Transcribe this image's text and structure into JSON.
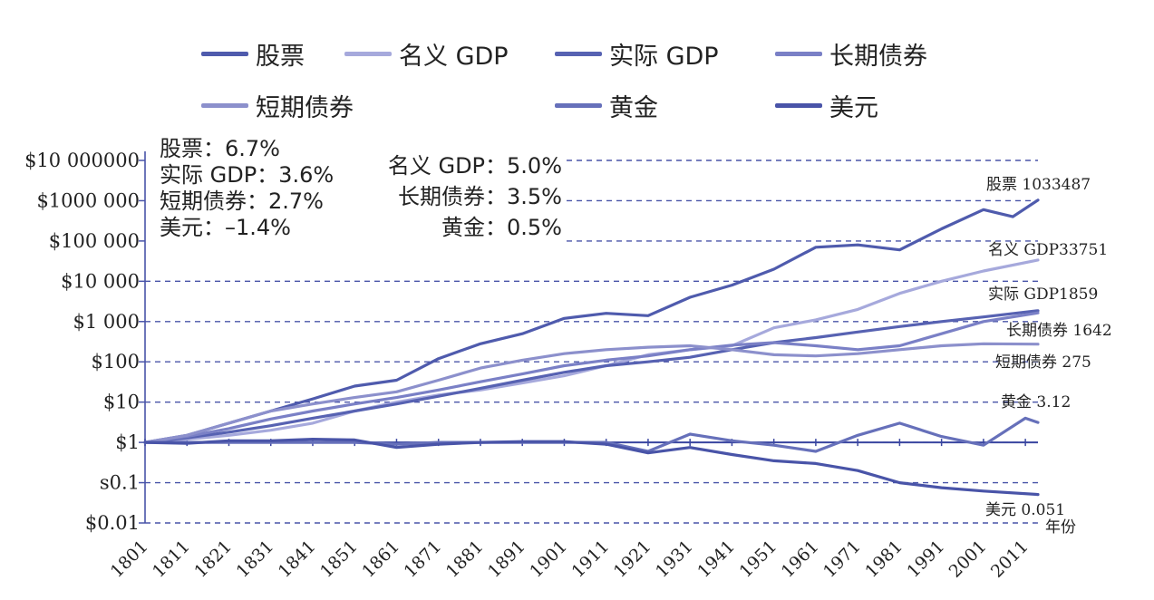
{
  "chart_data": {
    "type": "line",
    "y_scale": "log",
    "ylim": [
      0.01,
      10000000
    ],
    "xlim": [
      1801,
      2014
    ],
    "x_unit_label": "年份",
    "y_ticks": [
      {
        "value": 10000000,
        "label": "$10 000000"
      },
      {
        "value": 1000000,
        "label": "$1000 000"
      },
      {
        "value": 100000,
        "label": "$100 000"
      },
      {
        "value": 10000,
        "label": "$10 000"
      },
      {
        "value": 1000,
        "label": "$1 000"
      },
      {
        "value": 100,
        "label": "$100"
      },
      {
        "value": 10,
        "label": "$10"
      },
      {
        "value": 1,
        "label": "$1"
      },
      {
        "value": 0.1,
        "label": "s0.1"
      },
      {
        "value": 0.01,
        "label": "$0.01"
      }
    ],
    "x_ticks": [
      "1801",
      "1811",
      "1821",
      "1831",
      "1841",
      "1851",
      "1861",
      "1871",
      "1881",
      "1891",
      "1901",
      "1911",
      "1921",
      "1931",
      "1941",
      "1951",
      "1961",
      "1971",
      "1981",
      "1991",
      "2001",
      "2011"
    ],
    "grid": "dashed horizontal",
    "legend_placement": "top",
    "series": [
      {
        "key": "stocks",
        "name": "股票",
        "color": "#4f5bad",
        "end_label": "股票 1033487",
        "x": [
          1801,
          1811,
          1821,
          1831,
          1841,
          1851,
          1861,
          1871,
          1881,
          1891,
          1901,
          1911,
          1921,
          1931,
          1941,
          1951,
          1961,
          1971,
          1981,
          1991,
          2001,
          2008,
          2014
        ],
        "y": [
          1,
          1.5,
          3,
          6,
          12,
          25,
          35,
          120,
          280,
          500,
          1200,
          1600,
          1400,
          4000,
          8000,
          20000,
          70000,
          80000,
          60000,
          200000,
          600000,
          400000,
          1033487
        ]
      },
      {
        "key": "nominal_gdp",
        "name": "名义 GDP",
        "color": "#a6a9dc",
        "end_label": "名义 GDP33751",
        "x": [
          1801,
          1811,
          1821,
          1831,
          1841,
          1851,
          1861,
          1871,
          1881,
          1891,
          1901,
          1911,
          1921,
          1931,
          1941,
          1951,
          1961,
          1971,
          1981,
          1991,
          2001,
          2014
        ],
        "y": [
          1,
          1.2,
          1.5,
          2,
          3,
          6,
          10,
          15,
          20,
          30,
          45,
          80,
          150,
          200,
          250,
          700,
          1100,
          2000,
          5000,
          10000,
          18000,
          33751
        ]
      },
      {
        "key": "real_gdp",
        "name": "实际 GDP",
        "color": "#5762b2",
        "end_label": "实际 GDP1859",
        "x": [
          1801,
          1811,
          1821,
          1831,
          1841,
          1851,
          1861,
          1871,
          1881,
          1891,
          1901,
          1911,
          1921,
          1931,
          1941,
          1951,
          1961,
          1971,
          1981,
          1991,
          2001,
          2014
        ],
        "y": [
          1,
          1.3,
          1.8,
          2.6,
          4,
          6,
          9,
          14,
          22,
          35,
          55,
          80,
          100,
          130,
          200,
          300,
          400,
          550,
          750,
          1000,
          1300,
          1859
        ]
      },
      {
        "key": "long_bonds",
        "name": "长期债券",
        "color": "#7a80c6",
        "end_label": "长期债券 1642",
        "x": [
          1801,
          1811,
          1821,
          1831,
          1841,
          1851,
          1861,
          1871,
          1881,
          1891,
          1901,
          1911,
          1921,
          1931,
          1941,
          1951,
          1961,
          1971,
          1981,
          1991,
          2001,
          2014
        ],
        "y": [
          1,
          1.4,
          2.2,
          3.8,
          6,
          9,
          13,
          20,
          32,
          50,
          80,
          110,
          140,
          200,
          260,
          300,
          250,
          200,
          250,
          500,
          1000,
          1642
        ]
      },
      {
        "key": "short_bonds",
        "name": "短期债券",
        "color": "#8c90cc",
        "end_label": "短期债券 275",
        "x": [
          1801,
          1811,
          1821,
          1831,
          1841,
          1851,
          1861,
          1871,
          1881,
          1891,
          1901,
          1911,
          1921,
          1931,
          1941,
          1951,
          1961,
          1971,
          1981,
          1991,
          2001,
          2014
        ],
        "y": [
          1,
          1.5,
          3,
          6,
          9,
          13,
          18,
          35,
          70,
          110,
          160,
          200,
          230,
          250,
          200,
          150,
          140,
          160,
          200,
          250,
          280,
          275
        ]
      },
      {
        "key": "gold",
        "name": "黄金",
        "color": "#6670ba",
        "end_label": "黄金 3.12",
        "x": [
          1801,
          1811,
          1821,
          1831,
          1841,
          1851,
          1861,
          1871,
          1881,
          1891,
          1901,
          1911,
          1921,
          1931,
          1941,
          1951,
          1961,
          1971,
          1981,
          1991,
          2001,
          2011,
          2014
        ],
        "y": [
          1,
          1,
          1,
          1,
          1,
          1,
          0.9,
          1,
          1,
          1,
          1,
          1,
          0.6,
          1.6,
          1.1,
          0.85,
          0.6,
          1.5,
          3,
          1.4,
          0.85,
          4,
          3.12
        ]
      },
      {
        "key": "dollar",
        "name": "美元",
        "color": "#4954a8",
        "end_label": "美元 0.051",
        "x": [
          1801,
          1811,
          1821,
          1831,
          1841,
          1851,
          1861,
          1871,
          1881,
          1891,
          1901,
          1911,
          1921,
          1931,
          1941,
          1951,
          1961,
          1971,
          1981,
          1991,
          2001,
          2014
        ],
        "y": [
          1,
          0.95,
          1.1,
          1.1,
          1.2,
          1.15,
          0.75,
          0.9,
          1,
          1.05,
          1.05,
          0.9,
          0.55,
          0.75,
          0.5,
          0.35,
          0.3,
          0.2,
          0.1,
          0.075,
          0.062,
          0.051
        ]
      }
    ],
    "annotations_left": [
      "股票：6.7%",
      "实际 GDP：3.6%",
      "短期债券：2.7%",
      "美元：–1.4%"
    ],
    "annotations_right": [
      "名义 GDP：5.0%",
      "长期债券：3.5%",
      "黄金：0.5%"
    ]
  }
}
